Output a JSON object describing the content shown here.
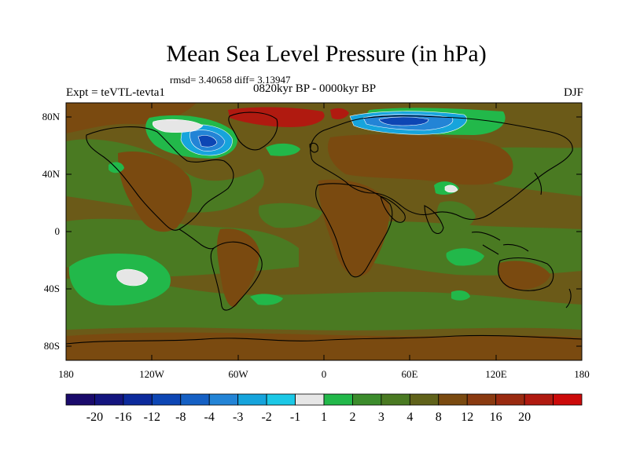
{
  "header": {
    "title": "Mean Sea Level Pressure (in hPa)",
    "stats": "rmsd= 3.40658 diff= 3.13947",
    "experiment": "Expt = teVTL-tevta1",
    "period": "0820kyr BP - 0000kyr BP",
    "season": "DJF"
  },
  "axes": {
    "lat_ticks": [
      "80N",
      "40N",
      "0",
      "40S",
      "80S"
    ],
    "lon_ticks": [
      "180",
      "120W",
      "60W",
      "0",
      "60E",
      "120E",
      "180"
    ]
  },
  "colorbar": {
    "colors": [
      "#1a0a6b",
      "#14157f",
      "#0c2a9c",
      "#0d46b4",
      "#1560c4",
      "#2384d6",
      "#16a4dc",
      "#1cc8e6",
      "#e6e6e6",
      "#22b84a",
      "#3c8c2c",
      "#4a7a22",
      "#60621a",
      "#7a4a10",
      "#8a3a10",
      "#9a2a10",
      "#b01a10",
      "#cc0a0a"
    ],
    "labels": [
      "-20",
      "-16",
      "-12",
      "-8",
      "-4",
      "-3",
      "-2",
      "-1",
      "1",
      "2",
      "3",
      "4",
      "8",
      "12",
      "16",
      "20"
    ]
  },
  "map_fill_colors": {
    "background": "#6b5a18",
    "medium_green": "#4a7a22",
    "bright_green": "#22b84a",
    "neutral": "#e6e6e6",
    "warm": "#7a4a10",
    "red": "#b01a10",
    "blue_dark": "#0d46b4",
    "blue_mid": "#2384d6",
    "blue_light": "#16a4dc"
  }
}
